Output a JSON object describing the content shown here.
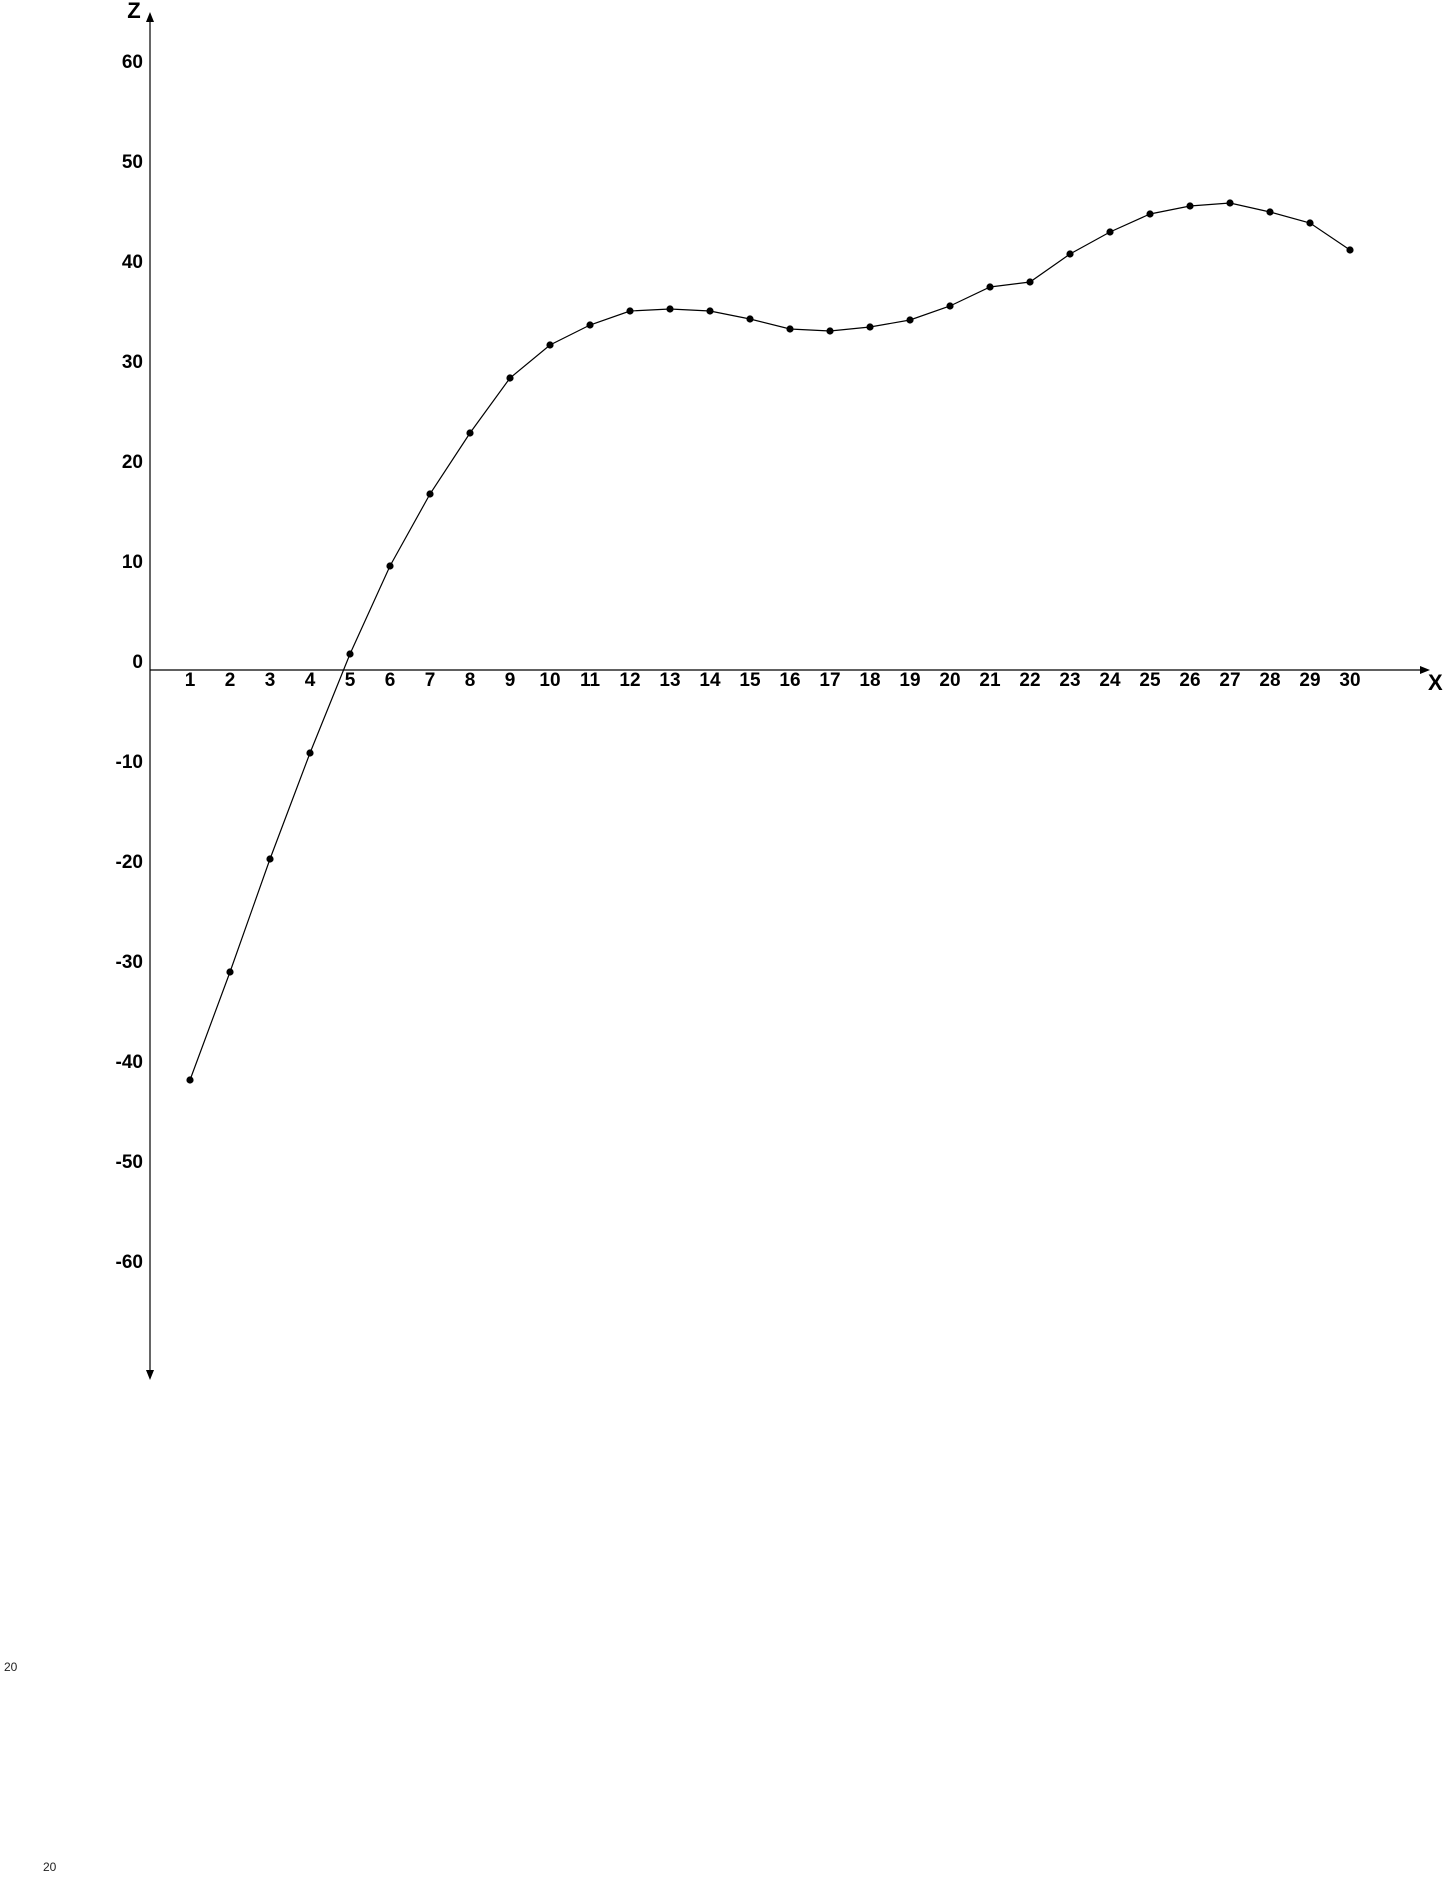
{
  "chart_data": {
    "type": "line",
    "title": "",
    "xlabel": "X",
    "ylabel": "Z",
    "x": [
      1,
      2,
      3,
      4,
      5,
      6,
      7,
      8,
      9,
      10,
      11,
      12,
      13,
      14,
      15,
      16,
      17,
      18,
      19,
      20,
      21,
      22,
      23,
      24,
      25,
      26,
      27,
      28,
      29,
      30
    ],
    "series": [
      {
        "values": [
          -41,
          -30.2,
          -18.9,
          -8.3,
          1.6,
          10.4,
          17.6,
          23.7,
          29.2,
          32.5,
          34.5,
          35.9,
          36.1,
          35.9,
          35.1,
          34.1,
          33.9,
          34.3,
          35.0,
          36.4,
          38.3,
          38.8,
          41.6,
          43.8,
          45.6,
          46.4,
          46.7,
          45.8,
          44.7,
          42.0
        ],
        "color": "#000000",
        "marker": "circle"
      }
    ],
    "x_ticks": [
      "1",
      "2",
      "3",
      "4",
      "5",
      "6",
      "7",
      "8",
      "9",
      "10",
      "11",
      "12",
      "13",
      "14",
      "15",
      "16",
      "17",
      "18",
      "19",
      "20",
      "21",
      "22",
      "23",
      "24",
      "25",
      "26",
      "27",
      "28",
      "29",
      "30"
    ],
    "y_ticks": [
      "60",
      "50",
      "40",
      "30",
      "20",
      "10",
      "0",
      "-10",
      "-20",
      "-30",
      "-40",
      "-50",
      "-60"
    ],
    "y_tick_values": [
      60,
      50,
      40,
      30,
      20,
      10,
      0,
      -10,
      -20,
      -30,
      -40,
      -50,
      -60
    ],
    "xlim": [
      0,
      32
    ],
    "ylim": [
      -71,
      66
    ],
    "grid": false,
    "legend": "none"
  },
  "notes": {
    "left_note": "20",
    "bottom_note": "20"
  }
}
